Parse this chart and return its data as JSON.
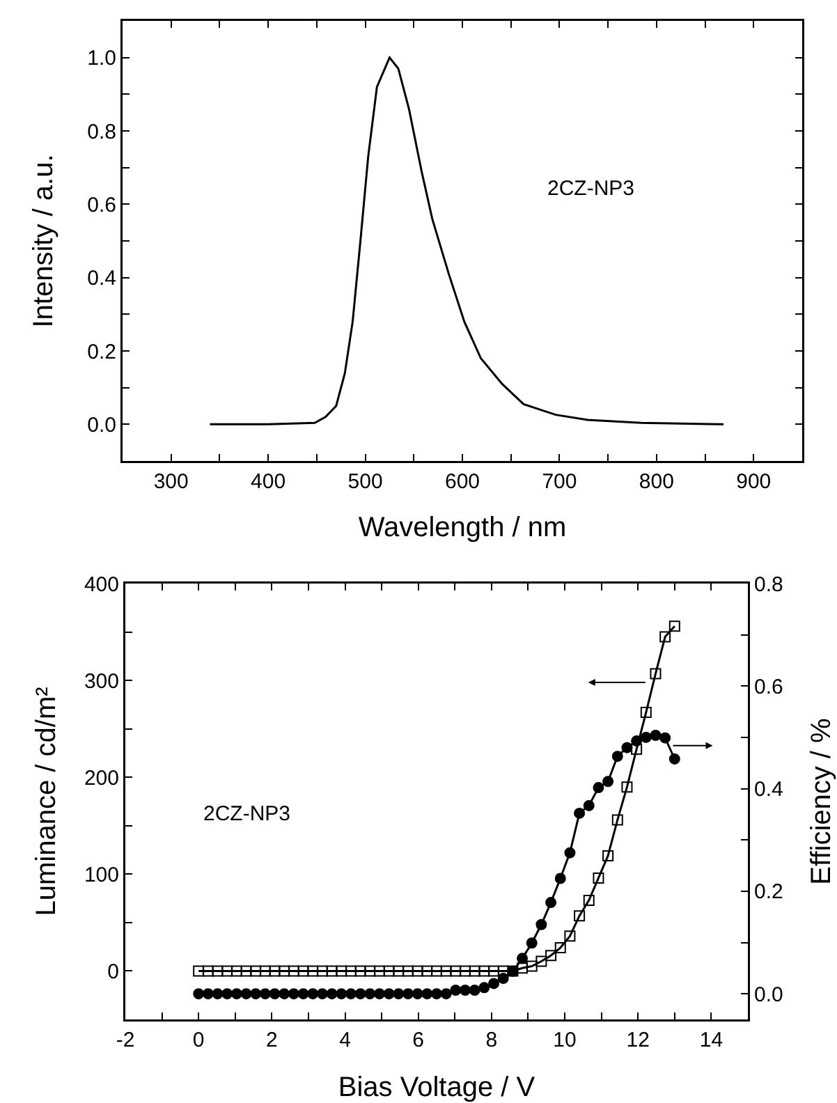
{
  "chart_data": [
    {
      "type": "line",
      "xlabel": "Wavelength / nm",
      "ylabel": "Intensity / a.u.",
      "annotations": [
        "2CZ-NP3"
      ],
      "marker": "none",
      "line_style": "solid",
      "x": [
        340,
        400,
        448,
        459,
        470,
        479,
        487,
        495,
        503,
        512,
        525,
        534,
        545,
        558,
        569,
        586,
        602,
        619,
        641,
        663,
        696,
        729,
        784,
        869
      ],
      "series": [
        {
          "color": "#000000",
          "values": [
            0,
            0,
            0.004,
            0.02,
            0.05,
            0.14,
            0.28,
            0.5,
            0.73,
            0.92,
            1.0,
            0.97,
            0.86,
            0.69,
            0.56,
            0.41,
            0.28,
            0.18,
            0.11,
            0.055,
            0.026,
            0.012,
            0.004,
            0
          ]
        }
      ],
      "xlim": [
        250,
        950
      ],
      "xticks": [
        {
          "value": 250,
          "label": null
        },
        300,
        {
          "value": 350,
          "label": null
        },
        400,
        {
          "value": 450,
          "label": null
        },
        500,
        {
          "value": 550,
          "label": null
        },
        600,
        {
          "value": 650,
          "label": null
        },
        700,
        {
          "value": 750,
          "label": null
        },
        800,
        {
          "value": 850,
          "label": null
        },
        900,
        {
          "value": 950,
          "label": null
        }
      ],
      "ylim": [
        -0.1,
        1.1
      ],
      "yticks": [
        {
          "value": -0.1,
          "label": null
        },
        {
          "value": 0,
          "label": "0.0"
        },
        {
          "value": 0.1,
          "label": null
        },
        {
          "value": 0.2,
          "label": "0.2"
        },
        {
          "value": 0.3,
          "label": null
        },
        {
          "value": 0.4,
          "label": "0.4"
        },
        {
          "value": 0.5,
          "label": null
        },
        {
          "value": 0.6,
          "label": "0.6"
        },
        {
          "value": 0.7,
          "label": null
        },
        {
          "value": 0.8,
          "label": "0.8"
        },
        {
          "value": 0.9,
          "label": null
        },
        {
          "value": 1,
          "label": "1.0"
        },
        {
          "value": 1.1,
          "label": null
        }
      ]
    },
    {
      "type": "line",
      "xlabel": "Bias Voltage / V",
      "ylabel": "Luminance / cd/m²",
      "y2label": "Efficiency / %",
      "annotations": [
        "2CZ-NP3"
      ],
      "line_style": "solid",
      "x": [
        0,
        0.26,
        0.52,
        0.78,
        1.04,
        1.3,
        1.56,
        1.82,
        2.08,
        2.34,
        2.6,
        2.86,
        3.12,
        3.38,
        3.64,
        3.9,
        4.16,
        4.42,
        4.68,
        4.94,
        5.2,
        5.46,
        5.72,
        5.98,
        6.24,
        6.5,
        6.76,
        7.02,
        7.28,
        7.54,
        7.8,
        8.06,
        8.32,
        8.58,
        8.84,
        9.1,
        9.36,
        9.62,
        9.88,
        10.14,
        10.4,
        10.66,
        10.92,
        11.18,
        11.44,
        11.7,
        11.96,
        12.22,
        12.48,
        12.74,
        13
      ],
      "series": [
        {
          "color": "#000000",
          "marker": "square",
          "values": [
            0,
            0,
            0,
            0,
            0,
            0,
            0,
            0,
            0,
            0,
            0,
            0,
            0,
            0,
            0,
            0,
            0,
            0,
            0,
            0,
            0,
            0,
            0,
            0,
            0,
            0,
            0,
            0,
            0,
            0,
            0,
            0,
            0,
            0,
            3,
            5,
            10,
            16,
            24,
            36,
            57,
            73,
            96,
            119,
            156,
            190,
            229,
            267,
            307,
            345,
            356
          ]
        },
        {
          "color": "#000000",
          "marker": "circle",
          "axis": "y2",
          "values": [
            0,
            0,
            0,
            0,
            0,
            0,
            0,
            0,
            0,
            0,
            0,
            0,
            0,
            0,
            0,
            0,
            0,
            0,
            0,
            0,
            0,
            0,
            0,
            0,
            0,
            0,
            0,
            0.007,
            0.007,
            0.007,
            0.012,
            0.02,
            0.03,
            0.044,
            0.069,
            0.099,
            0.135,
            0.178,
            0.225,
            0.275,
            0.352,
            0.367,
            0.402,
            0.414,
            0.463,
            0.48,
            0.493,
            0.5,
            0.504,
            0.499,
            0.458
          ]
        }
      ],
      "xlim": [
        -2,
        15
      ],
      "xticks": [
        -2,
        {
          "value": -1,
          "label": null
        },
        0,
        {
          "value": 1,
          "label": null
        },
        2,
        {
          "value": 3,
          "label": null
        },
        4,
        {
          "value": 5,
          "label": null
        },
        6,
        {
          "value": 7,
          "label": null
        },
        8,
        {
          "value": 9,
          "label": null
        },
        10,
        {
          "value": 11,
          "label": null
        },
        12,
        {
          "value": 13,
          "label": null
        },
        14,
        {
          "value": 15,
          "label": null
        }
      ],
      "ylim": [
        -50,
        400
      ],
      "yticks": [
        {
          "value": -50,
          "label": null
        },
        0,
        {
          "value": 50,
          "label": null
        },
        100,
        {
          "value": 150,
          "label": null
        },
        200,
        {
          "value": 250,
          "label": null
        },
        300,
        {
          "value": 350,
          "label": null
        },
        400
      ],
      "y2lim": [
        -0.05,
        0.8
      ],
      "y2ticks": [
        {
          "value": 0,
          "label": "0.0"
        },
        {
          "value": 0.1,
          "label": null
        },
        {
          "value": 0.2,
          "label": "0.2"
        },
        {
          "value": 0.3,
          "label": null
        },
        {
          "value": 0.4,
          "label": "0.4"
        },
        {
          "value": 0.5,
          "label": null
        },
        {
          "value": 0.6,
          "label": "0.6"
        },
        {
          "value": 0.7,
          "label": null
        },
        {
          "value": 0.8,
          "label": "0.8"
        }
      ]
    }
  ]
}
